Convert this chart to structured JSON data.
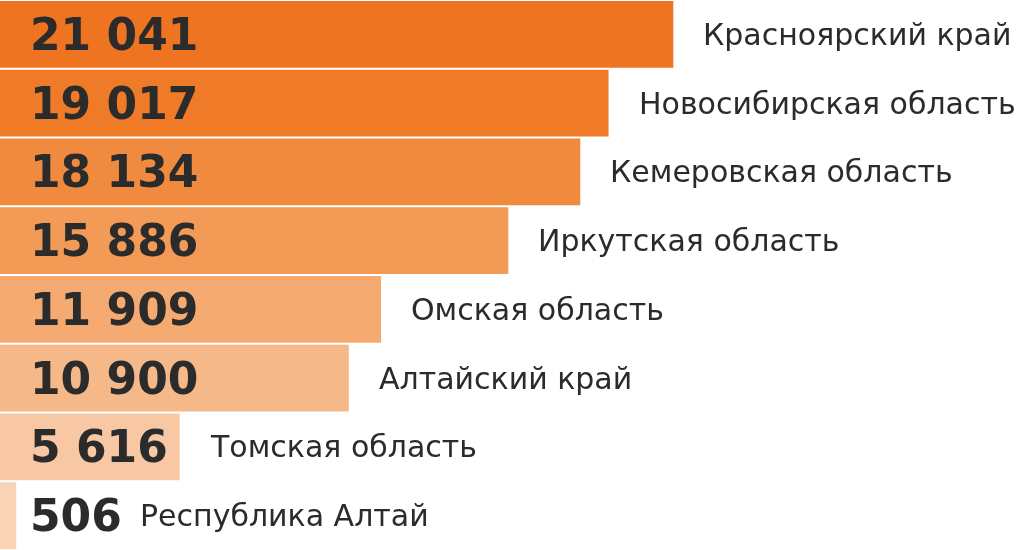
{
  "chart_data": {
    "type": "bar",
    "orientation": "horizontal",
    "categories": [
      "Красноярский край",
      "Новосибирская область",
      "Кемеровская область",
      "Иркутская область",
      "Омская область",
      "Алтайский край",
      "Томская область",
      "Республика Алтай"
    ],
    "values": [
      21041,
      19017,
      18134,
      15886,
      11909,
      10900,
      5616,
      506
    ],
    "value_labels": [
      "21 041",
      "19 017",
      "18 134",
      "15 886",
      "11 909",
      "10 900",
      "5 616",
      "506"
    ],
    "colors": [
      "#ee7421",
      "#ef7a27",
      "#f08a3f",
      "#f29a56",
      "#f4aa70",
      "#f5b888",
      "#f7c8a3",
      "#f8d3b6"
    ],
    "xlim": [
      0,
      32000
    ],
    "tick_labels": false
  }
}
